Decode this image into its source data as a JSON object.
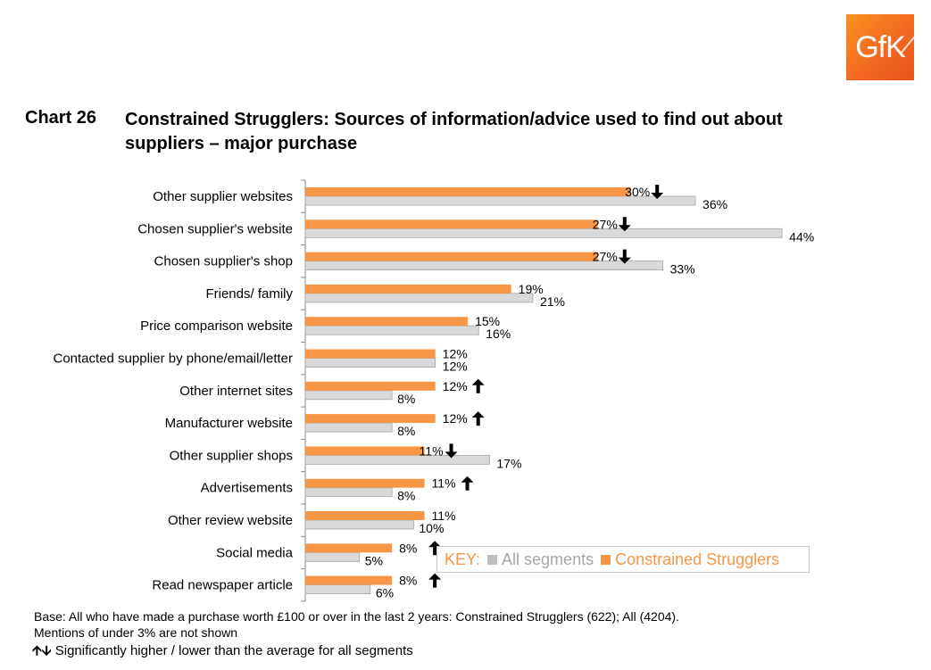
{
  "logo": {
    "text": "GfK"
  },
  "header": {
    "chart_number": "Chart 26",
    "title": "Constrained Strugglers: Sources of information/advice used to find out about suppliers – major purchase"
  },
  "colors": {
    "segment": "#f79646",
    "all": "#d9d9d9",
    "all_border": "#a6a6a6",
    "key_label": "#f79646",
    "key_all": "#a6a6a6"
  },
  "legend": {
    "key_label": "KEY:",
    "all_label": "All segments",
    "segment_label": "Constrained Strugglers"
  },
  "footnotes": {
    "base": "Base: All who have made a purchase worth £100 or over in the last 2 years: Constrained Strugglers (622); All (4204).",
    "mentions": "Mentions of under 3% are not shown",
    "significance": "Significantly higher / lower than the average for all segments"
  },
  "chart_data": {
    "type": "bar",
    "orientation": "horizontal",
    "title": "Constrained Strugglers: Sources of information/advice used to find out about suppliers – major purchase",
    "categories": [
      "Other supplier websites",
      "Chosen supplier's website",
      "Chosen supplier's shop",
      "Friends/ family",
      "Price comparison website",
      "Contacted supplier by phone/email/letter",
      "Other internet sites",
      "Manufacturer website",
      "Other supplier shops",
      "Advertisements",
      "Other review website",
      "Social media",
      "Read newspaper article"
    ],
    "series": [
      {
        "name": "Constrained Strugglers",
        "values": [
          30,
          27,
          27,
          19,
          15,
          12,
          12,
          12,
          11,
          11,
          11,
          8,
          8
        ]
      },
      {
        "name": "All segments",
        "values": [
          36,
          44,
          33,
          21,
          16,
          12,
          8,
          8,
          17,
          8,
          10,
          5,
          6
        ]
      }
    ],
    "significance": [
      "down",
      "down",
      "down",
      "",
      "",
      "",
      "up",
      "up",
      "down",
      "up",
      "",
      "up",
      "up"
    ],
    "value_suffix": "%",
    "xlim": [
      0,
      45
    ],
    "legend_position": "bottom-right",
    "grid": false
  }
}
